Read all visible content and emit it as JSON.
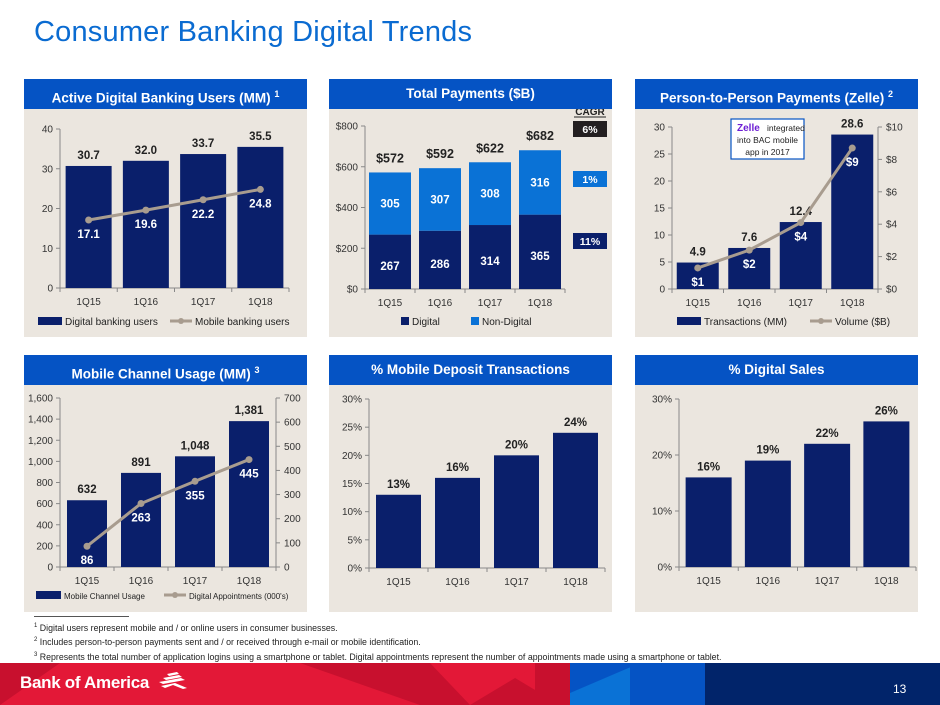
{
  "page": {
    "title": "Consumer Banking Digital Trends",
    "page_number": "13",
    "brand": "Bank of America"
  },
  "colors": {
    "title_blue": "#0a6bd1",
    "header_blue": "#0553c4",
    "navy_bar": "#0a1f6b",
    "light_blue_bar": "#0a72d6",
    "line_taupe": "#a89c8f",
    "panel_bg": "#ebe6df",
    "red": "#e31837"
  },
  "panels": {
    "p1": {
      "title": "Active Digital Banking Users (MM)",
      "footnote_ref": "1"
    },
    "p2": {
      "title": "Total Payments ($B)",
      "footnote_ref": ""
    },
    "p3": {
      "title": "Person-to-Person Payments (Zelle)",
      "footnote_ref": "2"
    },
    "p4": {
      "title": "Mobile Channel Usage (MM)",
      "footnote_ref": "3"
    },
    "p5": {
      "title": "% Mobile Deposit Transactions",
      "footnote_ref": ""
    },
    "p6": {
      "title": "% Digital Sales",
      "footnote_ref": ""
    }
  },
  "chart_data": [
    {
      "id": "p1",
      "type": "bar",
      "title": "Active Digital Banking Users (MM)",
      "categories": [
        "1Q15",
        "1Q16",
        "1Q17",
        "1Q18"
      ],
      "series": [
        {
          "name": "Digital banking users",
          "kind": "bar",
          "values": [
            30.7,
            32.0,
            33.7,
            35.5
          ],
          "labels": [
            "30.7",
            "32.0",
            "33.7",
            "35.5"
          ]
        },
        {
          "name": "Mobile banking users",
          "kind": "line",
          "values": [
            17.1,
            19.6,
            22.2,
            24.8
          ],
          "labels": [
            "17.1",
            "19.6",
            "22.2",
            "24.8"
          ]
        }
      ],
      "ylim": [
        0,
        40
      ],
      "yticks": [
        0,
        10,
        20,
        30,
        40
      ],
      "ytick_labels": [
        "0",
        "10",
        "20",
        "30",
        "40"
      ],
      "legend": "bottom"
    },
    {
      "id": "p2",
      "type": "bar",
      "stacked": true,
      "title": "Total Payments ($B)",
      "categories": [
        "1Q15",
        "1Q16",
        "1Q17",
        "1Q18"
      ],
      "series": [
        {
          "name": "Digital",
          "values": [
            267,
            286,
            314,
            365
          ],
          "labels": [
            "267",
            "286",
            "314",
            "365"
          ]
        },
        {
          "name": "Non-Digital",
          "values": [
            305,
            307,
            308,
            316
          ],
          "labels": [
            "305",
            "307",
            "308",
            "316"
          ]
        }
      ],
      "totals": [
        "$572",
        "$592",
        "$622",
        "$682"
      ],
      "ylim": [
        0,
        800
      ],
      "yticks": [
        0,
        200,
        400,
        600,
        800
      ],
      "ytick_labels": [
        "$0",
        "$200",
        "$400",
        "$600",
        "$800"
      ],
      "cagr": {
        "header": "CAGR",
        "total": "6%",
        "non_digital": "1%",
        "digital": "11%"
      },
      "legend": "bottom"
    },
    {
      "id": "p3",
      "type": "bar",
      "title": "Person-to-Person Payments (Zelle)",
      "categories": [
        "1Q15",
        "1Q16",
        "1Q17",
        "1Q18"
      ],
      "series": [
        {
          "name": "Transactions (MM)",
          "kind": "bar",
          "axis": "left",
          "values": [
            4.9,
            7.6,
            12.4,
            28.6
          ],
          "labels": [
            "4.9",
            "7.6",
            "12.4",
            "28.6"
          ]
        },
        {
          "name": "Volume ($B)",
          "kind": "line",
          "axis": "right",
          "values": [
            1.3,
            2.4,
            4.1,
            8.7
          ],
          "labels": [
            "$1",
            "$2",
            "$4",
            "$9"
          ]
        }
      ],
      "ylim": [
        0,
        30
      ],
      "yticks": [
        0,
        5,
        10,
        15,
        20,
        25,
        30
      ],
      "ytick_labels": [
        "0",
        "5",
        "10",
        "15",
        "20",
        "25",
        "30"
      ],
      "y2lim": [
        0,
        10
      ],
      "y2ticks": [
        0,
        2,
        4,
        6,
        8,
        10
      ],
      "y2tick_labels": [
        "$0",
        "$2",
        "$4",
        "$6",
        "$8",
        "$10"
      ],
      "annotation": {
        "brand": "Zelle",
        "lines": [
          "integrated",
          "into BAC mobile",
          "app in 2017"
        ]
      },
      "legend": "bottom"
    },
    {
      "id": "p4",
      "type": "bar",
      "title": "Mobile Channel Usage (MM)",
      "categories": [
        "1Q15",
        "1Q16",
        "1Q17",
        "1Q18"
      ],
      "series": [
        {
          "name": "Mobile Channel Usage",
          "kind": "bar",
          "axis": "left",
          "values": [
            632,
            891,
            1048,
            1381
          ],
          "labels": [
            "632",
            "891",
            "1,048",
            "1,381"
          ]
        },
        {
          "name": "Digital Appointments (000's)",
          "kind": "line",
          "axis": "right",
          "values": [
            86,
            263,
            355,
            445
          ],
          "labels": [
            "86",
            "263",
            "355",
            "445"
          ]
        }
      ],
      "ylim": [
        0,
        1600
      ],
      "yticks": [
        0,
        200,
        400,
        600,
        800,
        1000,
        1200,
        1400,
        1600
      ],
      "ytick_labels": [
        "0",
        "200",
        "400",
        "600",
        "800",
        "1,000",
        "1,200",
        "1,400",
        "1,600"
      ],
      "y2lim": [
        0,
        700
      ],
      "y2ticks": [
        0,
        100,
        200,
        300,
        400,
        500,
        600,
        700
      ],
      "y2tick_labels": [
        "0",
        "100",
        "200",
        "300",
        "400",
        "500",
        "600",
        "700"
      ],
      "legend": "bottom"
    },
    {
      "id": "p5",
      "type": "bar",
      "title": "% Mobile Deposit Transactions",
      "categories": [
        "1Q15",
        "1Q16",
        "1Q17",
        "1Q18"
      ],
      "series": [
        {
          "name": "% Mobile Deposit Transactions",
          "kind": "bar",
          "values": [
            13,
            16,
            20,
            24
          ],
          "labels": [
            "13%",
            "16%",
            "20%",
            "24%"
          ]
        }
      ],
      "ylim": [
        0,
        30
      ],
      "yticks": [
        0,
        5,
        10,
        15,
        20,
        25,
        30
      ],
      "ytick_labels": [
        "0%",
        "5%",
        "10%",
        "15%",
        "20%",
        "25%",
        "30%"
      ]
    },
    {
      "id": "p6",
      "type": "bar",
      "title": "% Digital Sales",
      "categories": [
        "1Q15",
        "1Q16",
        "1Q17",
        "1Q18"
      ],
      "series": [
        {
          "name": "% Digital Sales",
          "kind": "bar",
          "values": [
            16,
            19,
            22,
            26
          ],
          "labels": [
            "16%",
            "19%",
            "22%",
            "26%"
          ]
        }
      ],
      "ylim": [
        0,
        30
      ],
      "yticks": [
        0,
        10,
        20,
        30
      ],
      "ytick_labels": [
        "0%",
        "10%",
        "20%",
        "30%"
      ]
    }
  ],
  "footnotes": [
    {
      "ref": "1",
      "text": "Digital users represent mobile and / or online users in consumer businesses."
    },
    {
      "ref": "2",
      "text": "Includes person-to-person payments sent and / or received through e-mail or mobile identification."
    },
    {
      "ref": "3",
      "text": "Represents the total number of application logins using a smartphone or tablet. Digital appointments represent the number of appointments made using a smartphone or tablet."
    }
  ]
}
